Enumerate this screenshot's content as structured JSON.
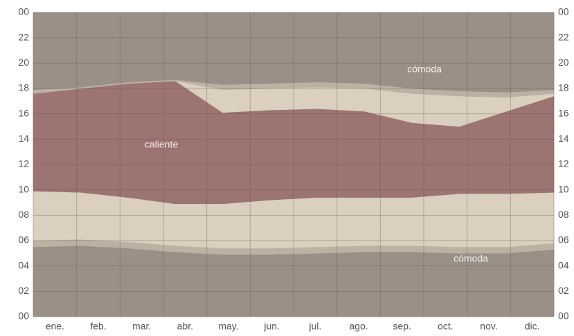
{
  "chart_data": {
    "type": "stacked-area",
    "categories": [
      "ene.",
      "feb.",
      "mar.",
      "abr.",
      "may.",
      "jun.",
      "jul.",
      "ago.",
      "sep.",
      "oct.",
      "nov.",
      "dic."
    ],
    "ylim": [
      0,
      24
    ],
    "yticks": [
      {
        "value": 0,
        "label": "00"
      },
      {
        "value": 2,
        "label": "02"
      },
      {
        "value": 4,
        "label": "04"
      },
      {
        "value": 6,
        "label": "06"
      },
      {
        "value": 8,
        "label": "08"
      },
      10,
      12,
      14,
      16,
      18,
      20,
      22,
      {
        "value": 24,
        "label": "00"
      }
    ],
    "grid": true,
    "background": "#9a9088",
    "series": [
      {
        "color": "#9a9088",
        "values": [
          5.5,
          5.6,
          5.4,
          5.1,
          4.9,
          4.9,
          5.0,
          5.1,
          5.1,
          5.0,
          5.0,
          5.3
        ]
      },
      {
        "color": "#bcb2a3",
        "values": [
          0.5,
          0.5,
          0.5,
          0.5,
          0.5,
          0.5,
          0.5,
          0.5,
          0.5,
          0.5,
          0.5,
          0.5
        ]
      },
      {
        "color": "#dad0bd",
        "values": [
          3.9,
          3.7,
          3.5,
          3.3,
          3.5,
          3.8,
          3.9,
          3.8,
          3.8,
          4.2,
          4.2,
          4.0
        ]
      },
      {
        "color": "#9c7471",
        "values": [
          7.7,
          8.2,
          9.0,
          9.7,
          7.2,
          7.1,
          7.0,
          6.8,
          5.9,
          5.3,
          6.5,
          7.6
        ]
      },
      {
        "color": "#dad0bd",
        "values": [
          0,
          0,
          0,
          0,
          1.8,
          1.7,
          1.7,
          1.8,
          2.3,
          2.4,
          1.1,
          0.2
        ]
      },
      {
        "color": "#bcb2a3",
        "values": [
          0.3,
          0.1,
          0.1,
          0.1,
          0.4,
          0.4,
          0.4,
          0.4,
          0.4,
          0.4,
          0.4,
          0.3
        ]
      },
      {
        "color": "#9a9088",
        "values": [
          6.1,
          5.9,
          5.5,
          5.3,
          5.7,
          5.6,
          5.5,
          5.6,
          6.0,
          6.2,
          6.3,
          6.1
        ]
      }
    ],
    "annotations": [
      "caliente",
      "cómoda",
      "cómoda"
    ]
  }
}
